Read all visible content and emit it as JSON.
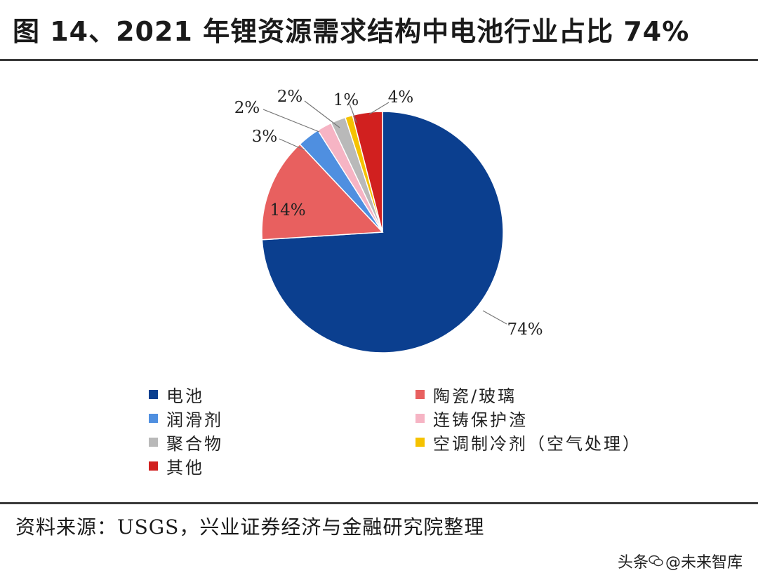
{
  "title": "图 14、2021 年锂资源需求结构中电池行业占比 74%",
  "source": "资料来源：USGS，兴业证券经济与金融研究院整理",
  "watermark": {
    "prefix": "头条",
    "handle": "@未来智库",
    "icon": "wechat-logo-icon"
  },
  "chart_data": {
    "type": "pie",
    "start_angle_deg": 0,
    "direction": "clockwise",
    "legend_position": "bottom",
    "slices": [
      {
        "name": "电池",
        "value": 74,
        "label": "74%",
        "color": "#0b3f8f"
      },
      {
        "name": "陶瓷/玻璃",
        "value": 14,
        "label": "14%",
        "color": "#e8605f"
      },
      {
        "name": "润滑剂",
        "value": 3,
        "label": "3%",
        "color": "#4f8fe0"
      },
      {
        "name": "连铸保护渣",
        "value": 2,
        "label": "2%",
        "color": "#f6b4c4"
      },
      {
        "name": "聚合物",
        "value": 2,
        "label": "2%",
        "color": "#b9b9b9"
      },
      {
        "name": "空调制冷剂（空气处理）",
        "value": 1,
        "label": "1%",
        "color": "#f5c200"
      },
      {
        "name": "其他",
        "value": 4,
        "label": "4%",
        "color": "#d1201f"
      }
    ]
  }
}
